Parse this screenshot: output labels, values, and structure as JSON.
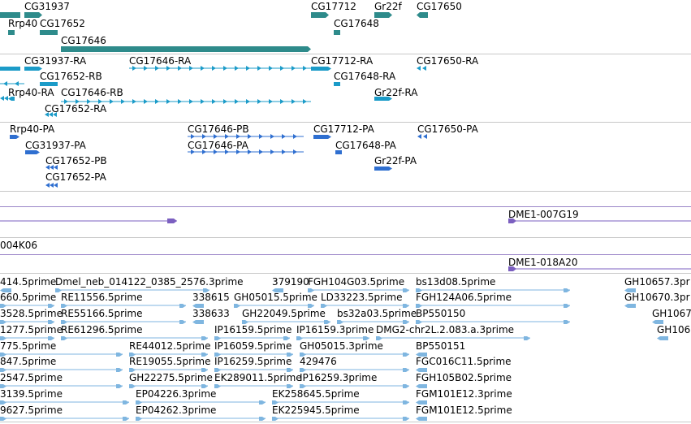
{
  "colors": {
    "gene": "#2e8b8b",
    "cdna": "#1b9bc8",
    "protein": "#2f6fd0",
    "clone": "#7b5fc0",
    "est": "#7fb6e0",
    "separator": "#c8c8c8"
  },
  "tracks": {
    "genes": [
      "CG31937",
      "Rrp40",
      "CG17652",
      "CG17646",
      "CG17712",
      "CG17648",
      "Gr22f",
      "CG17650"
    ],
    "transcripts": [
      "CG31937-RA",
      "CG17646-RA",
      "CG17712-RA",
      "CG17650-RA",
      "CG17652-RB",
      "CG17648-RA",
      "Rrp40-RA",
      "CG17646-RB",
      "Gr22f-RA",
      "CG17652-RA"
    ],
    "proteins": [
      "Rrp40-PA",
      "CG17646-PB",
      "CG17712-PA",
      "CG17650-PA",
      "CG31937-PA",
      "CG17646-PA",
      "CG17648-PA",
      "CG17652-PB",
      "Gr22f-PA",
      "CG17652-PA"
    ],
    "clones": [
      "DME1-007G19",
      "004K06",
      "DME1-018A20"
    ],
    "ests": [
      "414.5prime",
      "Dmel_neb_014122_0385_2576.3prime",
      "379190",
      "FGH104G03.5prime",
      "bs13d08.5prime",
      "GH10657.3pr",
      "660.5prime",
      "RE11556.5prime",
      "338615",
      "GH05015.5prime",
      "LD33223.5prime",
      "FGH124A06.5prime",
      "GH10670.3pr",
      "3528.5prime",
      "RE55166.5prime",
      "338633",
      "GH22049.5prime",
      "bs32a03.5prime",
      "BP550150",
      "GH1067",
      "1277.5prime",
      "RE61296.5prime",
      "IP16159.5prime",
      "IP16159.3prime",
      "DMG2-chr2L.2.083.a.3prime",
      "GH106",
      "775.5prime",
      "RE44012.5prime",
      "IP16059.5prime",
      "GH05015.3prime",
      "BP550151",
      "847.5prime",
      "RE19055.5prime",
      "IP16259.5prime",
      "429476",
      "FGC016C11.5prime",
      "2547.5prime",
      "GH22275.5prime",
      "EK289011.5prime",
      "IP16259.3prime",
      "FGH105B02.5prime",
      "3139.5prime",
      "EP04226.3prime",
      "EK258645.5prime",
      "FGM101E12.3prime",
      "9627.5prime",
      "EP04262.3prime",
      "EK225945.5prime",
      "FGM101E12.5prime"
    ]
  }
}
